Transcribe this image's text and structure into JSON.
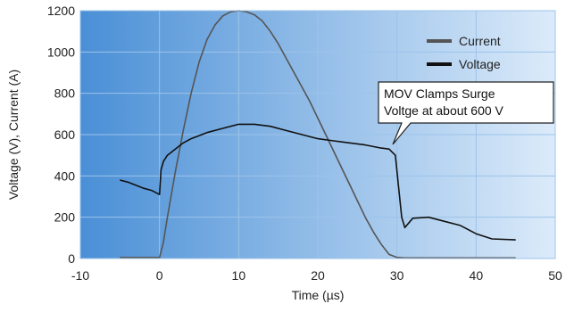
{
  "chart_data": {
    "type": "line",
    "xlabel": "Time (µs)",
    "ylabel": "Voltage (V), Current (A)",
    "xlim": [
      -10,
      50
    ],
    "ylim": [
      0,
      1200
    ],
    "xticks": [
      -10,
      0,
      10,
      20,
      30,
      40,
      50
    ],
    "yticks": [
      0,
      200,
      400,
      600,
      800,
      1000,
      1200
    ],
    "xtick_labels": [
      "-10",
      "0",
      "10",
      "20",
      "30",
      "40",
      "50"
    ],
    "ytick_labels": [
      "0",
      "200",
      "400",
      "600",
      "800",
      "1000",
      "1200"
    ],
    "grid": true,
    "legend_position": "top-right",
    "colors": {
      "plot_bg_left": "#4a8fd6",
      "plot_bg_right": "#dcebfa",
      "grid": "#9cc3ea",
      "current": "#555555",
      "voltage": "#111111"
    },
    "series": [
      {
        "name": "Current",
        "color": "#555555",
        "x": [
          -5,
          -3,
          -1,
          0,
          0.5,
          1,
          2,
          3,
          4,
          5,
          6,
          7,
          8,
          9,
          10,
          11,
          12,
          13,
          14,
          15,
          16,
          17,
          18,
          19,
          20,
          21,
          22,
          23,
          24,
          25,
          26,
          27,
          28,
          29,
          30,
          31,
          32,
          35,
          40,
          45
        ],
        "y": [
          5,
          5,
          5,
          5,
          80,
          200,
          420,
          620,
          800,
          950,
          1060,
          1130,
          1175,
          1195,
          1200,
          1195,
          1180,
          1150,
          1100,
          1040,
          970,
          900,
          830,
          760,
          680,
          600,
          520,
          440,
          360,
          280,
          200,
          130,
          70,
          20,
          5,
          3,
          3,
          3,
          3,
          3
        ]
      },
      {
        "name": "Voltage",
        "color": "#111111",
        "x": [
          -5,
          -4,
          -3,
          -2,
          -1,
          0,
          0.2,
          0.5,
          1,
          2,
          3,
          4,
          6,
          8,
          10,
          12,
          14,
          16,
          18,
          20,
          22,
          24,
          26,
          28,
          29,
          29.8,
          30.2,
          30.6,
          31,
          32,
          34,
          36,
          38,
          40,
          42,
          45
        ],
        "y": [
          380,
          370,
          355,
          340,
          330,
          310,
          430,
          470,
          500,
          530,
          560,
          580,
          610,
          630,
          650,
          650,
          640,
          620,
          600,
          580,
          570,
          560,
          550,
          535,
          530,
          500,
          350,
          200,
          150,
          195,
          200,
          180,
          160,
          120,
          95,
          90
        ]
      }
    ],
    "annotation": {
      "text_lines": [
        "MOV Clamps Surge",
        "Voltge at about 600 V"
      ],
      "point": [
        30,
        530
      ]
    }
  }
}
